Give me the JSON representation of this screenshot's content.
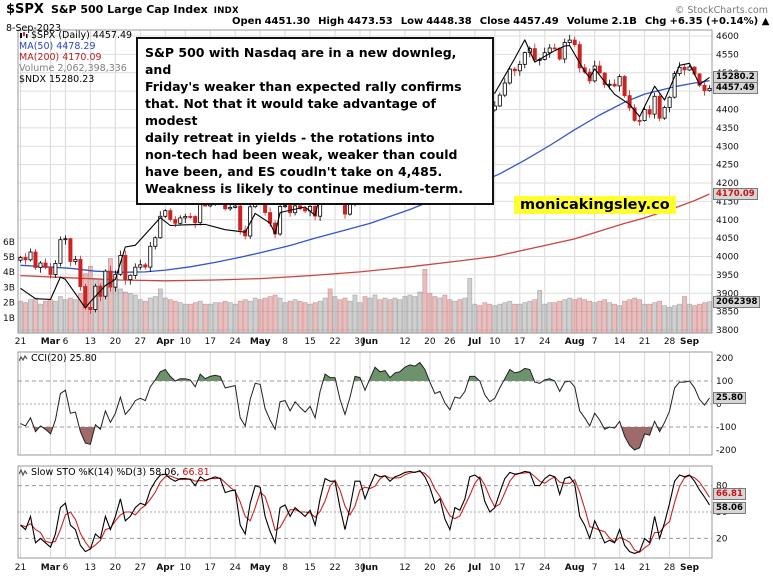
{
  "header": {
    "symbol": "$SPX",
    "name": "S&P 500 Large Cap Index",
    "exchange": "INDX",
    "copyright": "© StockCharts.com",
    "date": "8-Sep-2023",
    "quote": [
      {
        "label": "Open",
        "value": "4451.30"
      },
      {
        "label": "High",
        "value": "4473.53"
      },
      {
        "label": "Low",
        "value": "4448.38"
      },
      {
        "label": "Close",
        "value": "4457.49"
      },
      {
        "label": "Volume",
        "value": "2.1B"
      },
      {
        "label": "Chg",
        "value": "+6.35 (+0.14%) ▲"
      }
    ]
  },
  "legend": {
    "spx": "$SPX (Daily) 4457.49",
    "ma50": "MA(50) 4478.29",
    "ma200": "MA(200) 4170.09",
    "volume": "Volume 2,062,398,336",
    "ndx": "$NDX 15280.23"
  },
  "annotation": "S&P 500 with Nasdaq are in a new downleg, and\nFriday's weaker than expected rally confirms\nthat. Not that it would take advantage of modest\ndaily retreat in yields - the rotations into\nnon-tech had been weak, weaker than could\nhave been, and ES coudln't take on 4,485.\nWeakness is likely to continue medium-term.",
  "watermark": "monicakingsley.co",
  "cci_label": "CCI(20) 25.80",
  "sto_label_main": "Slow STO %K(14) %D(3) 58.06,",
  "sto_label_d": "66.81",
  "colors": {
    "ma50": "#3355cc",
    "ma200": "#cc4444",
    "candle_down": "#cc2222",
    "candle_up": "#000000",
    "ndx": "#000000",
    "cci_over_fill": "#6d936d",
    "cci_under_fill": "#9e6a6a",
    "sto_k": "#000000",
    "sto_d": "#cc2222",
    "watermark_bg": "#ffff2e"
  },
  "chart_data": {
    "type": "candlestick",
    "title": "$SPX Daily with MA(50), MA(200), Volume, $NDX overlay, CCI(20), Slow STO %K(14) %D(3)",
    "price_axis": {
      "min": 3800,
      "max": 4600,
      "step": 50
    },
    "volume_axis": {
      "min": 0,
      "max": 6,
      "unit": "B"
    },
    "cci_axis": {
      "ticks": [
        200,
        100,
        0,
        -100,
        -200
      ]
    },
    "sto_axis": {
      "ticks": [
        80,
        50,
        20
      ]
    },
    "x_ticks": [
      {
        "i": 0,
        "l": "21"
      },
      {
        "i": 6,
        "l": "Mar",
        "m": 1
      },
      {
        "i": 9,
        "l": "6"
      },
      {
        "i": 14,
        "l": "13"
      },
      {
        "i": 19,
        "l": "20"
      },
      {
        "i": 24,
        "l": "27"
      },
      {
        "i": 29,
        "l": "Apr",
        "m": 1
      },
      {
        "i": 33,
        "l": "10"
      },
      {
        "i": 38,
        "l": "17"
      },
      {
        "i": 43,
        "l": "24"
      },
      {
        "i": 48,
        "l": "May",
        "m": 1
      },
      {
        "i": 53,
        "l": "8"
      },
      {
        "i": 58,
        "l": "15"
      },
      {
        "i": 63,
        "l": "22"
      },
      {
        "i": 68,
        "l": "30"
      },
      {
        "i": 70,
        "l": "Jun",
        "m": 1
      },
      {
        "i": 77,
        "l": "12"
      },
      {
        "i": 82,
        "l": "20"
      },
      {
        "i": 86,
        "l": "26"
      },
      {
        "i": 91,
        "l": "Jul",
        "m": 1
      },
      {
        "i": 95,
        "l": "10"
      },
      {
        "i": 100,
        "l": "17"
      },
      {
        "i": 105,
        "l": "24"
      },
      {
        "i": 111,
        "l": "Aug",
        "m": 1
      },
      {
        "i": 115,
        "l": "7"
      },
      {
        "i": 120,
        "l": "14"
      },
      {
        "i": 125,
        "l": "21"
      },
      {
        "i": 130,
        "l": "28"
      },
      {
        "i": 134,
        "l": "Sep",
        "m": 1
      }
    ],
    "closes": [
      3997.34,
      3991.05,
      4012.32,
      3970.04,
      3982.24,
      3970.15,
      3951.39,
      3981.35,
      4045.64,
      4048.42,
      3986.37,
      3992.01,
      3918.32,
      3861.59,
      3855.76,
      3919.29,
      3891.93,
      3960.28,
      3916.64,
      3951.57,
      4002.87,
      3936.97,
      3948.72,
      3970.99,
      3977.53,
      3971.27,
      4027.81,
      4050.83,
      4109.31,
      4124.51,
      4100.6,
      4090.38,
      4105.02,
      4109.11,
      4108.94,
      4091.95,
      4146.22,
      4137.64,
      4151.32,
      4154.87,
      4154.52,
      4129.79,
      4133.52,
      4137.04,
      4071.63,
      4055.99,
      4135.35,
      4169.48,
      4167.87,
      4119.58,
      4090.75,
      4061.22,
      4136.25,
      4138.12,
      4119.17,
      4137.64,
      4130.62,
      4124.08,
      4136.28,
      4109.9,
      4158.77,
      4198.05,
      4191.98,
      4192.63,
      4145.58,
      4115.24,
      4151.28,
      4205.45,
      4205.52,
      4179.83,
      4221.02,
      4282.37,
      4273.79,
      4283.85,
      4267.52,
      4293.93,
      4298.86,
      4338.93,
      4369.01,
      4372.59,
      4425.84,
      4409.59,
      4388.71,
      4365.69,
      4381.89,
      4348.33,
      4328.82,
      4378.41,
      4376.86,
      4396.44,
      4450.38,
      4455.59,
      4446.82,
      4411.59,
      4398.95,
      4409.53,
      4439.26,
      4472.16,
      4510.04,
      4505.42,
      4522.79,
      4554.98,
      4565.72,
      4534.87,
      4536.34,
      4554.64,
      4567.46,
      4566.75,
      4537.41,
      4582.23,
      4588.96,
      4576.73,
      4513.39,
      4501.89,
      4478.03,
      4518.44,
      4499.38,
      4467.71,
      4468.83,
      4464.05,
      4489.72,
      4437.86,
      4404.33,
      4370.36,
      4369.71,
      4399.77,
      4387.55,
      4436.01,
      4376.31,
      4405.71,
      4433.31,
      4497.63,
      4514.87,
      4507.66,
      4515.77,
      4496.83,
      4465.48,
      4451.14,
      4457.49
    ],
    "volumes": [
      2.1,
      2.0,
      2.2,
      2.3,
      1.9,
      2.1,
      2.2,
      2.1,
      2.4,
      2.2,
      2.3,
      2.2,
      2.6,
      3.9,
      4.4,
      3.6,
      3.5,
      3.9,
      4.9,
      3.0,
      2.9,
      2.7,
      2.6,
      2.5,
      2.2,
      2.1,
      2.3,
      2.4,
      2.9,
      2.3,
      2.2,
      2.1,
      2.0,
      1.9,
      1.9,
      2.0,
      2.1,
      1.9,
      1.9,
      2.0,
      2.0,
      2.1,
      2.0,
      1.9,
      2.1,
      2.2,
      2.1,
      2.3,
      2.2,
      2.3,
      2.4,
      2.5,
      2.3,
      2.0,
      2.1,
      2.2,
      2.1,
      2.0,
      1.9,
      2.0,
      2.1,
      2.3,
      2.9,
      2.4,
      2.2,
      2.3,
      2.1,
      2.5,
      2.0,
      2.4,
      2.3,
      2.5,
      2.2,
      2.3,
      2.2,
      2.3,
      2.2,
      2.4,
      2.5,
      2.4,
      2.7,
      4.2,
      2.6,
      2.4,
      2.3,
      2.5,
      2.2,
      2.1,
      2.2,
      2.3,
      3.6,
      1.9,
      1.8,
      2.0,
      1.9,
      1.8,
      1.9,
      2.0,
      2.1,
      1.9,
      1.9,
      2.0,
      2.1,
      2.2,
      2.8,
      1.9,
      2.0,
      2.0,
      2.1,
      2.2,
      2.3,
      2.2,
      2.3,
      2.2,
      2.1,
      2.0,
      2.1,
      2.2,
      2.0,
      1.9,
      1.8,
      2.1,
      2.2,
      2.3,
      2.2,
      1.9,
      1.9,
      2.0,
      2.1,
      1.8,
      1.7,
      1.8,
      1.9,
      2.4,
      1.9,
      1.8,
      1.9,
      2.0,
      2.062
    ],
    "cci": [
      -85,
      -95,
      -60,
      -120,
      -95,
      -110,
      -130,
      -70,
      45,
      60,
      -40,
      -35,
      -120,
      -170,
      -175,
      -90,
      -110,
      -30,
      -80,
      -40,
      30,
      -45,
      -20,
      15,
      25,
      15,
      75,
      105,
      140,
      150,
      120,
      100,
      110,
      110,
      105,
      75,
      130,
      110,
      120,
      125,
      120,
      70,
      75,
      80,
      -60,
      -95,
      20,
      90,
      85,
      -20,
      -70,
      -110,
      10,
      15,
      -30,
      10,
      -15,
      -35,
      -10,
      -60,
      55,
      130,
      115,
      115,
      20,
      -45,
      30,
      120,
      115,
      60,
      110,
      160,
      140,
      145,
      115,
      135,
      140,
      160,
      170,
      165,
      180,
      150,
      95,
      45,
      55,
      5,
      -25,
      30,
      25,
      55,
      120,
      120,
      100,
      40,
      10,
      25,
      70,
      110,
      150,
      135,
      140,
      155,
      150,
      95,
      90,
      105,
      110,
      100,
      55,
      95,
      100,
      75,
      -30,
      -60,
      -95,
      -40,
      -70,
      -110,
      -100,
      -105,
      -75,
      -140,
      -180,
      -200,
      -190,
      -130,
      -135,
      -75,
      -120,
      -80,
      -30,
      70,
      95,
      95,
      100,
      70,
      20,
      -5,
      25.8
    ],
    "sto_k": [
      35,
      30,
      45,
      15,
      20,
      15,
      10,
      25,
      55,
      60,
      35,
      30,
      12,
      5,
      8,
      25,
      20,
      45,
      30,
      45,
      65,
      40,
      45,
      55,
      60,
      58,
      75,
      85,
      92,
      93,
      88,
      85,
      88,
      88,
      87,
      80,
      90,
      86,
      88,
      90,
      88,
      72,
      74,
      75,
      35,
      25,
      60,
      80,
      78,
      45,
      28,
      15,
      55,
      58,
      45,
      55,
      50,
      45,
      52,
      35,
      65,
      88,
      85,
      85,
      55,
      30,
      55,
      85,
      85,
      65,
      80,
      93,
      90,
      91,
      85,
      90,
      92,
      95,
      96,
      95,
      97,
      90,
      78,
      60,
      65,
      42,
      30,
      55,
      52,
      65,
      90,
      92,
      88,
      62,
      50,
      55,
      72,
      88,
      95,
      93,
      94,
      96,
      95,
      80,
      80,
      88,
      92,
      90,
      70,
      88,
      90,
      82,
      45,
      35,
      20,
      40,
      28,
      15,
      18,
      15,
      30,
      12,
      5,
      3,
      5,
      20,
      15,
      45,
      20,
      38,
      60,
      85,
      92,
      90,
      92,
      85,
      75,
      67,
      58.06
    ],
    "ma50_anchors": [
      [
        0,
        3976
      ],
      [
        10,
        3968
      ],
      [
        15,
        3960
      ],
      [
        20,
        3957
      ],
      [
        25,
        3958
      ],
      [
        29,
        3963
      ],
      [
        34,
        3972
      ],
      [
        39,
        3984
      ],
      [
        44,
        3998
      ],
      [
        48,
        4010
      ],
      [
        54,
        4030
      ],
      [
        59,
        4050
      ],
      [
        64,
        4068
      ],
      [
        70,
        4090
      ],
      [
        78,
        4128
      ],
      [
        82,
        4150
      ],
      [
        87,
        4172
      ],
      [
        91,
        4195
      ],
      [
        96,
        4225
      ],
      [
        101,
        4262
      ],
      [
        106,
        4302
      ],
      [
        111,
        4345
      ],
      [
        116,
        4385
      ],
      [
        121,
        4420
      ],
      [
        125,
        4442
      ],
      [
        131,
        4462
      ],
      [
        135,
        4472
      ],
      [
        138,
        4478.29
      ]
    ],
    "ma200_anchors": [
      [
        0,
        3948
      ],
      [
        10,
        3942
      ],
      [
        20,
        3936
      ],
      [
        29,
        3934
      ],
      [
        39,
        3936
      ],
      [
        48,
        3940
      ],
      [
        58,
        3948
      ],
      [
        68,
        3958
      ],
      [
        78,
        3972
      ],
      [
        88,
        3988
      ],
      [
        95,
        4000
      ],
      [
        105,
        4030
      ],
      [
        111,
        4048
      ],
      [
        121,
        4090
      ],
      [
        125,
        4105
      ],
      [
        131,
        4132
      ],
      [
        135,
        4152
      ],
      [
        138,
        4170.09
      ]
    ],
    "ndx_range": [
      11500,
      15900
    ],
    "ndx_anchors": [
      [
        0,
        12124
      ],
      [
        3,
        11969
      ],
      [
        6,
        11958
      ],
      [
        8,
        12291
      ],
      [
        9,
        12257
      ],
      [
        13,
        11831
      ],
      [
        14,
        11924
      ],
      [
        17,
        12166
      ],
      [
        19,
        12257
      ],
      [
        21,
        12742
      ],
      [
        23,
        12767
      ],
      [
        28,
        13181
      ],
      [
        30,
        13064
      ],
      [
        33,
        13074
      ],
      [
        37,
        13080
      ],
      [
        41,
        13001
      ],
      [
        45,
        12963
      ],
      [
        47,
        13245
      ],
      [
        50,
        13098
      ],
      [
        51,
        12938
      ],
      [
        52,
        13259
      ],
      [
        57,
        13341
      ],
      [
        59,
        13216
      ],
      [
        61,
        13835
      ],
      [
        62,
        13803
      ],
      [
        64,
        13605
      ],
      [
        66,
        13941
      ],
      [
        67,
        14298
      ],
      [
        69,
        14254
      ],
      [
        71,
        14547
      ],
      [
        76,
        14528
      ],
      [
        81,
        15083
      ],
      [
        84,
        14904
      ],
      [
        86,
        14732
      ],
      [
        90,
        15179
      ],
      [
        93,
        15036
      ],
      [
        95,
        15045
      ],
      [
        99,
        15565
      ],
      [
        101,
        15841
      ],
      [
        103,
        15510
      ],
      [
        107,
        15680
      ],
      [
        109,
        15750
      ],
      [
        110,
        15757
      ],
      [
        113,
        15370
      ],
      [
        114,
        15274
      ],
      [
        115,
        15407
      ],
      [
        119,
        15028
      ],
      [
        122,
        14876
      ],
      [
        124,
        14694
      ],
      [
        127,
        15148
      ],
      [
        129,
        14942
      ],
      [
        132,
        15462
      ],
      [
        134,
        15491
      ],
      [
        136,
        15173
      ],
      [
        138,
        15280.23
      ]
    ],
    "value_tags": [
      {
        "id": "ndx-price-tag",
        "text": "15280.2",
        "series": "ndx",
        "value": 15280.23,
        "color": "#000"
      },
      {
        "id": "spx-close-tag",
        "text": "4457.49",
        "series": "price",
        "value": 4457.49,
        "color": "#000"
      },
      {
        "id": "ma200-tag",
        "text": "4170.09",
        "series": "price",
        "value": 4170.09,
        "color": "#cc1111"
      },
      {
        "id": "volume-tag",
        "text": "2062398",
        "series": "volume",
        "value": 2.062,
        "color": "#000"
      },
      {
        "id": "cci-tag",
        "text": "25.80",
        "series": "cci",
        "value": 25.8,
        "color": "#000"
      },
      {
        "id": "sto-d-tag",
        "text": "66.81",
        "series": "sto",
        "value": 66.81,
        "color": "#cc1111",
        "dy": -3
      },
      {
        "id": "sto-k-tag",
        "text": "58.06",
        "series": "sto",
        "value": 58.06,
        "color": "#000",
        "dy": 3
      }
    ]
  }
}
